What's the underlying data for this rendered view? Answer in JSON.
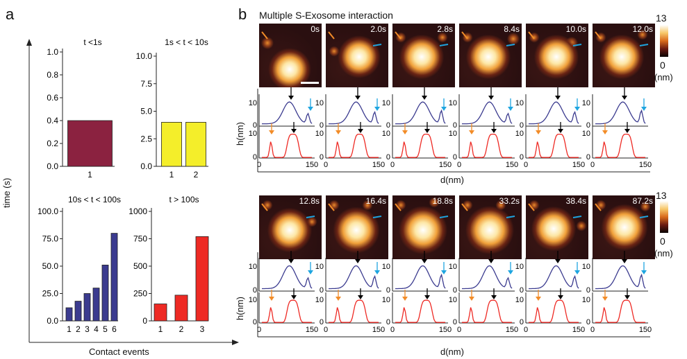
{
  "panel_labels": {
    "a": "a",
    "b": "b"
  },
  "panel_b_title": "Multiple S-Exosome interaction",
  "panel_a": {
    "y_title": "time (s)",
    "x_title": "Contact events"
  },
  "colorbar": {
    "max": "13",
    "min": "0",
    "unit": "(nm)"
  },
  "profile_axes": {
    "ylabel": "h(nm)",
    "xlabel": "d(nm)",
    "yticks": [
      "10",
      "0"
    ],
    "xticks": [
      "0",
      "150"
    ]
  },
  "row1_times": [
    "0s",
    "2.0s",
    "2.8s",
    "8.4s",
    "10.0s",
    "12.0s"
  ],
  "row2_times": [
    "12.8s",
    "16.4s",
    "18.8s",
    "33.2s",
    "38.4s",
    "87.2s"
  ],
  "colors": {
    "maroon": "#8b2240",
    "yellow": "#f4ee2a",
    "navy": "#3b3b8f",
    "red": "#ee2a24",
    "orange_arrow": "#f28c28",
    "blue_arrow": "#1ea5e0",
    "black_arrow": "#000000"
  },
  "chart_data": [
    {
      "type": "bar",
      "title": "t <1s",
      "categories": [
        "1"
      ],
      "values": [
        0.4
      ],
      "yticks": [
        "1.0",
        "0.8",
        "0.6",
        "0.4",
        "0.2",
        "0.0"
      ],
      "ylim": [
        0,
        1.0
      ],
      "color": "#8b2240"
    },
    {
      "type": "bar",
      "title": "1s < t < 10s",
      "categories": [
        "1",
        "2"
      ],
      "values": [
        4.0,
        4.0
      ],
      "yticks": [
        "10.0",
        "7.5",
        "5.0",
        "2.5",
        "0.0"
      ],
      "ylim": [
        0,
        10
      ],
      "color": "#f4ee2a"
    },
    {
      "type": "bar",
      "title": "10s < t < 100s",
      "categories": [
        "1",
        "2",
        "3",
        "4",
        "5",
        "6"
      ],
      "values": [
        12,
        18,
        25,
        30,
        51,
        80
      ],
      "yticks": [
        "100.0",
        "75.0",
        "50.0",
        "25.0",
        "0.0"
      ],
      "ylim": [
        0,
        100
      ],
      "color": "#3b3b8f"
    },
    {
      "type": "bar",
      "title": "t > 100s",
      "categories": [
        "1",
        "2",
        "3"
      ],
      "values": [
        155,
        235,
        770
      ],
      "yticks": [
        "1000",
        "750",
        "500",
        "250",
        "0"
      ],
      "ylim": [
        0,
        1000
      ],
      "color": "#ee2a24"
    }
  ]
}
